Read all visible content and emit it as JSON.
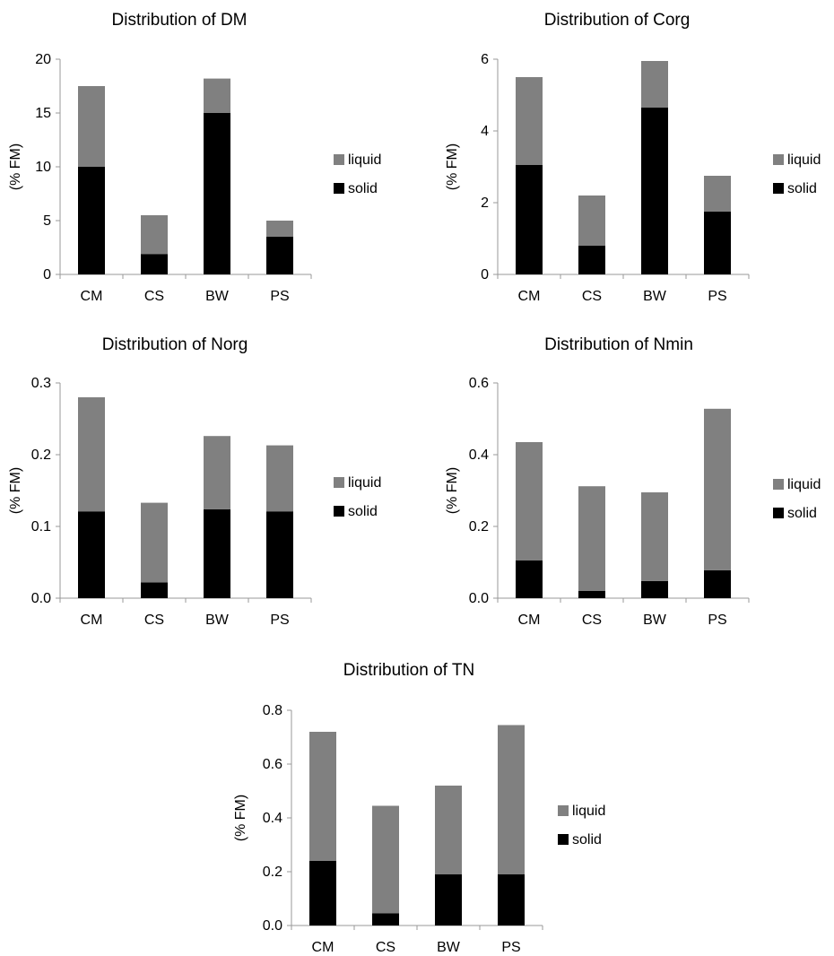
{
  "colors": {
    "liquid": "#808080",
    "solid": "#000000",
    "axis": "#999999"
  },
  "chart_data": [
    {
      "type": "bar",
      "stacked": true,
      "title": "Distribution of DM",
      "ylabel": "(% FM)",
      "categories": [
        "CM",
        "CS",
        "BW",
        "PS"
      ],
      "ylim": [
        0,
        20
      ],
      "yticks": [
        "0",
        "5",
        "10",
        "15",
        "20"
      ],
      "series": [
        {
          "name": "solid",
          "values": [
            10.0,
            1.9,
            15.0,
            3.5
          ]
        },
        {
          "name": "liquid",
          "values": [
            7.5,
            3.6,
            3.2,
            1.5
          ]
        }
      ],
      "legend": [
        "liquid",
        "solid"
      ],
      "legend_position": "right"
    },
    {
      "type": "bar",
      "stacked": true,
      "title": "Distribution of Corg",
      "ylabel": "(% FM)",
      "categories": [
        "CM",
        "CS",
        "BW",
        "PS"
      ],
      "ylim": [
        0,
        6
      ],
      "yticks": [
        "0",
        "2",
        "4",
        "6"
      ],
      "series": [
        {
          "name": "solid",
          "values": [
            3.05,
            0.8,
            4.65,
            1.75
          ]
        },
        {
          "name": "liquid",
          "values": [
            2.45,
            1.4,
            1.3,
            1.0
          ]
        }
      ],
      "legend": [
        "liquid",
        "solid"
      ],
      "legend_position": "right"
    },
    {
      "type": "bar",
      "stacked": true,
      "title": "Distribution of Norg",
      "ylabel": "(% FM)",
      "categories": [
        "CM",
        "CS",
        "BW",
        "PS"
      ],
      "ylim": [
        0,
        0.3
      ],
      "yticks": [
        "0.0",
        "0.1",
        "0.2",
        "0.3"
      ],
      "series": [
        {
          "name": "solid",
          "values": [
            0.121,
            0.022,
            0.124,
            0.121
          ]
        },
        {
          "name": "liquid",
          "values": [
            0.159,
            0.111,
            0.102,
            0.092
          ]
        }
      ],
      "legend": [
        "liquid",
        "solid"
      ],
      "legend_position": "right"
    },
    {
      "type": "bar",
      "stacked": true,
      "title": "Distribution of Nmin",
      "ylabel": "(% FM)",
      "categories": [
        "CM",
        "CS",
        "BW",
        "PS"
      ],
      "ylim": [
        0,
        0.6
      ],
      "yticks": [
        "0.0",
        "0.2",
        "0.4",
        "0.6"
      ],
      "series": [
        {
          "name": "solid",
          "values": [
            0.105,
            0.02,
            0.048,
            0.078
          ]
        },
        {
          "name": "liquid",
          "values": [
            0.33,
            0.292,
            0.247,
            0.45
          ]
        }
      ],
      "legend": [
        "liquid",
        "solid"
      ],
      "legend_position": "right"
    },
    {
      "type": "bar",
      "stacked": true,
      "title": "Distribution of TN",
      "ylabel": "(% FM)",
      "categories": [
        "CM",
        "CS",
        "BW",
        "PS"
      ],
      "ylim": [
        0,
        0.8
      ],
      "yticks": [
        "0.0",
        "0.2",
        "0.4",
        "0.6",
        "0.8"
      ],
      "series": [
        {
          "name": "solid",
          "values": [
            0.24,
            0.045,
            0.19,
            0.19
          ]
        },
        {
          "name": "liquid",
          "values": [
            0.48,
            0.4,
            0.33,
            0.555
          ]
        }
      ],
      "legend": [
        "liquid",
        "solid"
      ],
      "legend_position": "right"
    }
  ]
}
